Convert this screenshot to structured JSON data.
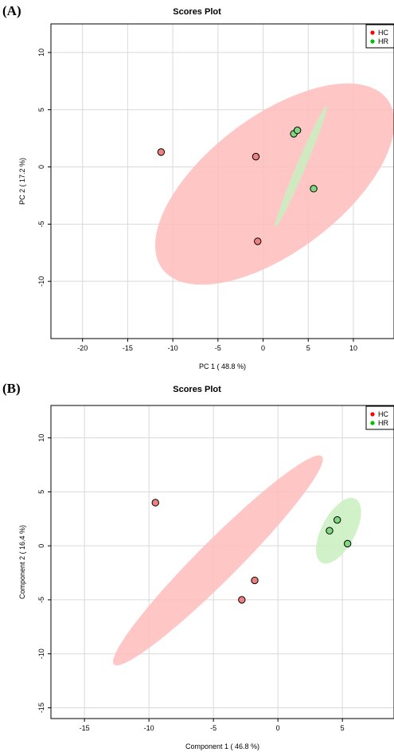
{
  "chart_data": [
    {
      "type": "scatter",
      "panel_label": "(A)",
      "title": "Scores Plot",
      "xlabel": "PC 1 ( 48.8 %)",
      "ylabel": "PC 2 ( 17.2 %)",
      "xlim": [
        -23.5,
        14.5
      ],
      "ylim": [
        -15,
        12.5
      ],
      "xticks": [
        -20,
        -15,
        -10,
        -5,
        0,
        5,
        10
      ],
      "yticks": [
        -10,
        -5,
        0,
        5,
        10
      ],
      "grid": true,
      "legend_position": "top-right",
      "series": [
        {
          "name": "HC",
          "color": "#ff0000",
          "point_color": "#f08080",
          "ellipse_color": "#ffbcbc",
          "points": [
            {
              "x": -11.3,
              "y": 1.3
            },
            {
              "x": -0.8,
              "y": 0.9
            },
            {
              "x": -0.6,
              "y": -6.5
            }
          ],
          "ellipse": {
            "cx": 1.3,
            "cy": -1.5,
            "rx": 15.6,
            "ry": 7.5,
            "angle": -37
          }
        },
        {
          "name": "HR",
          "color": "#00c000",
          "point_color": "#7fd77f",
          "ellipse_color": "#c9efc0",
          "points": [
            {
              "x": 3.4,
              "y": 2.9
            },
            {
              "x": 3.8,
              "y": 3.2
            },
            {
              "x": 5.6,
              "y": -1.9
            }
          ],
          "ellipse": {
            "cx": 4.2,
            "cy": 0.05,
            "rx": 7.3,
            "ry": 0.5,
            "angle": -67
          }
        }
      ]
    },
    {
      "type": "scatter",
      "panel_label": "(B)",
      "title": "Scores Plot",
      "xlabel": "Component 1 ( 46.8 %)",
      "ylabel": "Component 2 ( 16.4 %)",
      "xlim": [
        -17.6,
        9
      ],
      "ylim": [
        -16,
        13
      ],
      "xticks": [
        -15,
        -10,
        -5,
        0,
        5
      ],
      "yticks": [
        -15,
        -10,
        -5,
        0,
        5,
        10
      ],
      "grid": true,
      "legend_position": "top-right",
      "series": [
        {
          "name": "HC",
          "color": "#ff0000",
          "point_color": "#f08080",
          "ellipse_color": "#ffbcbc",
          "points": [
            {
              "x": -9.5,
              "y": 4.0
            },
            {
              "x": -1.8,
              "y": -3.2
            },
            {
              "x": -2.8,
              "y": -5.0
            }
          ],
          "ellipse": {
            "cx": -4.65,
            "cy": -1.35,
            "rx": 11.4,
            "ry": 1.55,
            "angle": -45
          }
        },
        {
          "name": "HR",
          "color": "#00c000",
          "point_color": "#7fd77f",
          "ellipse_color": "#c9efc0",
          "points": [
            {
              "x": 4.6,
              "y": 2.4
            },
            {
              "x": 4.0,
              "y": 1.4
            },
            {
              "x": 5.4,
              "y": 0.2
            }
          ],
          "ellipse": {
            "cx": 4.7,
            "cy": 1.4,
            "rx": 2.8,
            "ry": 1.3,
            "angle": -62
          }
        }
      ]
    }
  ]
}
